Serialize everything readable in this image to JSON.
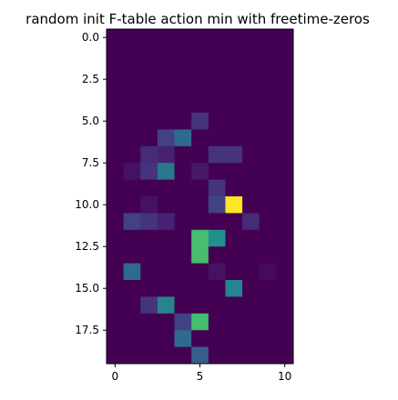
{
  "chart_data": {
    "type": "heatmap",
    "title": "random init F-table action min with freetime-zeros",
    "xlabel": "",
    "ylabel": "",
    "colormap": "viridis",
    "vmin": 0,
    "vmax": 1,
    "n_rows": 20,
    "n_cols": 11,
    "xlim": [
      -0.5,
      10.5
    ],
    "ylim": [
      19.5,
      -0.5
    ],
    "grid": false,
    "x_ticks": [
      0,
      5,
      10
    ],
    "x_tick_labels": [
      "0",
      "5",
      "10"
    ],
    "y_ticks": [
      0.0,
      2.5,
      5.0,
      7.5,
      10.0,
      12.5,
      15.0,
      17.5
    ],
    "y_tick_labels": [
      "0.0",
      "2.5",
      "5.0",
      "7.5",
      "10.0",
      "12.5",
      "15.0",
      "17.5"
    ],
    "values": [
      [
        0,
        0,
        0,
        0,
        0,
        0,
        0,
        0,
        0,
        0,
        0
      ],
      [
        0,
        0,
        0,
        0,
        0,
        0,
        0,
        0,
        0,
        0,
        0
      ],
      [
        0,
        0,
        0,
        0,
        0,
        0,
        0,
        0,
        0,
        0,
        0
      ],
      [
        0,
        0,
        0,
        0,
        0,
        0,
        0,
        0,
        0,
        0,
        0
      ],
      [
        0,
        0,
        0,
        0,
        0,
        0,
        0,
        0,
        0,
        0,
        0
      ],
      [
        0,
        0,
        0,
        0,
        0,
        0.15,
        0,
        0,
        0,
        0,
        0
      ],
      [
        0,
        0,
        0,
        0.2,
        0.35,
        0,
        0,
        0,
        0,
        0,
        0
      ],
      [
        0,
        0,
        0.12,
        0.1,
        0,
        0,
        0.15,
        0.15,
        0,
        0,
        0
      ],
      [
        0,
        0.05,
        0.15,
        0.4,
        0,
        0.07,
        0,
        0,
        0,
        0,
        0
      ],
      [
        0,
        0,
        0,
        0,
        0,
        0,
        0.15,
        0,
        0,
        0,
        0
      ],
      [
        0,
        0,
        0.05,
        0,
        0,
        0,
        0.2,
        1.0,
        0,
        0,
        0
      ],
      [
        0,
        0.2,
        0.15,
        0.1,
        0,
        0,
        0,
        0,
        0.12,
        0,
        0
      ],
      [
        0,
        0,
        0,
        0,
        0,
        0.7,
        0.5,
        0,
        0,
        0,
        0
      ],
      [
        0,
        0,
        0,
        0,
        0,
        0.7,
        0,
        0,
        0,
        0,
        0
      ],
      [
        0,
        0.35,
        0,
        0,
        0,
        0,
        0.05,
        0,
        0,
        0.03,
        0
      ],
      [
        0,
        0,
        0,
        0,
        0,
        0,
        0,
        0.45,
        0,
        0,
        0
      ],
      [
        0,
        0,
        0.15,
        0.45,
        0,
        0,
        0,
        0,
        0,
        0,
        0
      ],
      [
        0,
        0,
        0,
        0,
        0.2,
        0.7,
        0,
        0,
        0,
        0,
        0
      ],
      [
        0,
        0,
        0,
        0,
        0.35,
        0,
        0,
        0,
        0,
        0,
        0
      ],
      [
        0,
        0,
        0,
        0,
        0,
        0.3,
        0,
        0,
        0,
        0,
        0
      ]
    ]
  }
}
